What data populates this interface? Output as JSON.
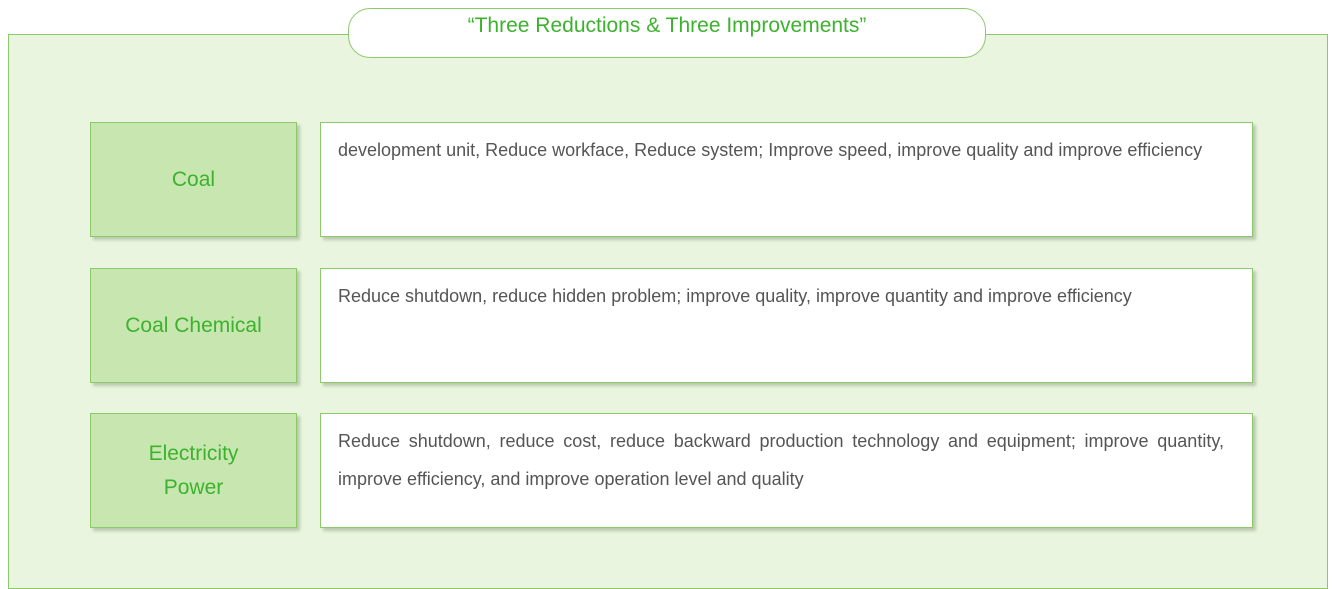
{
  "title": "“Three Reductions & Three Improvements”",
  "rows": [
    {
      "label": "Coal",
      "text": "development unit, Reduce workface, Reduce system; Improve speed, improve quality and improve efficiency"
    },
    {
      "label": "Coal Chemical",
      "text": "Reduce shutdown, reduce hidden problem; improve quality, improve quantity and improve efficiency"
    },
    {
      "label": "Electricity Power",
      "text": "Reduce shutdown, reduce cost, reduce backward production technology and equipment; improve quantity, improve efficiency, and improve operation level and quality"
    }
  ]
}
